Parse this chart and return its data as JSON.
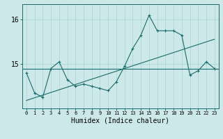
{
  "xlabel": "Humidex (Indice chaleur)",
  "background_color": "#cce8e8",
  "line_color": "#1a6b6b",
  "x_values": [
    0,
    1,
    2,
    3,
    4,
    5,
    6,
    7,
    8,
    9,
    10,
    11,
    12,
    13,
    14,
    15,
    16,
    17,
    18,
    19,
    20,
    21,
    22,
    23
  ],
  "y_data": [
    14.8,
    14.35,
    14.25,
    14.9,
    15.05,
    14.65,
    14.5,
    14.55,
    14.5,
    14.45,
    14.4,
    14.6,
    14.95,
    15.35,
    15.65,
    16.1,
    15.75,
    15.75,
    15.75,
    15.65,
    14.75,
    14.85,
    15.05,
    14.9
  ],
  "y_trend": [
    14.18,
    14.24,
    14.3,
    14.36,
    14.42,
    14.48,
    14.54,
    14.6,
    14.66,
    14.72,
    14.78,
    14.84,
    14.9,
    14.96,
    15.02,
    15.08,
    15.14,
    15.2,
    15.26,
    15.32,
    15.38,
    15.44,
    15.5,
    15.56
  ],
  "ymajor_ticks": [
    15,
    16
  ],
  "ylim": [
    14.0,
    16.35
  ],
  "xlim": [
    -0.5,
    23.5
  ],
  "grid_color": "#a8d4d4",
  "hline_y": 14.9,
  "xlabel_fontsize": 7
}
